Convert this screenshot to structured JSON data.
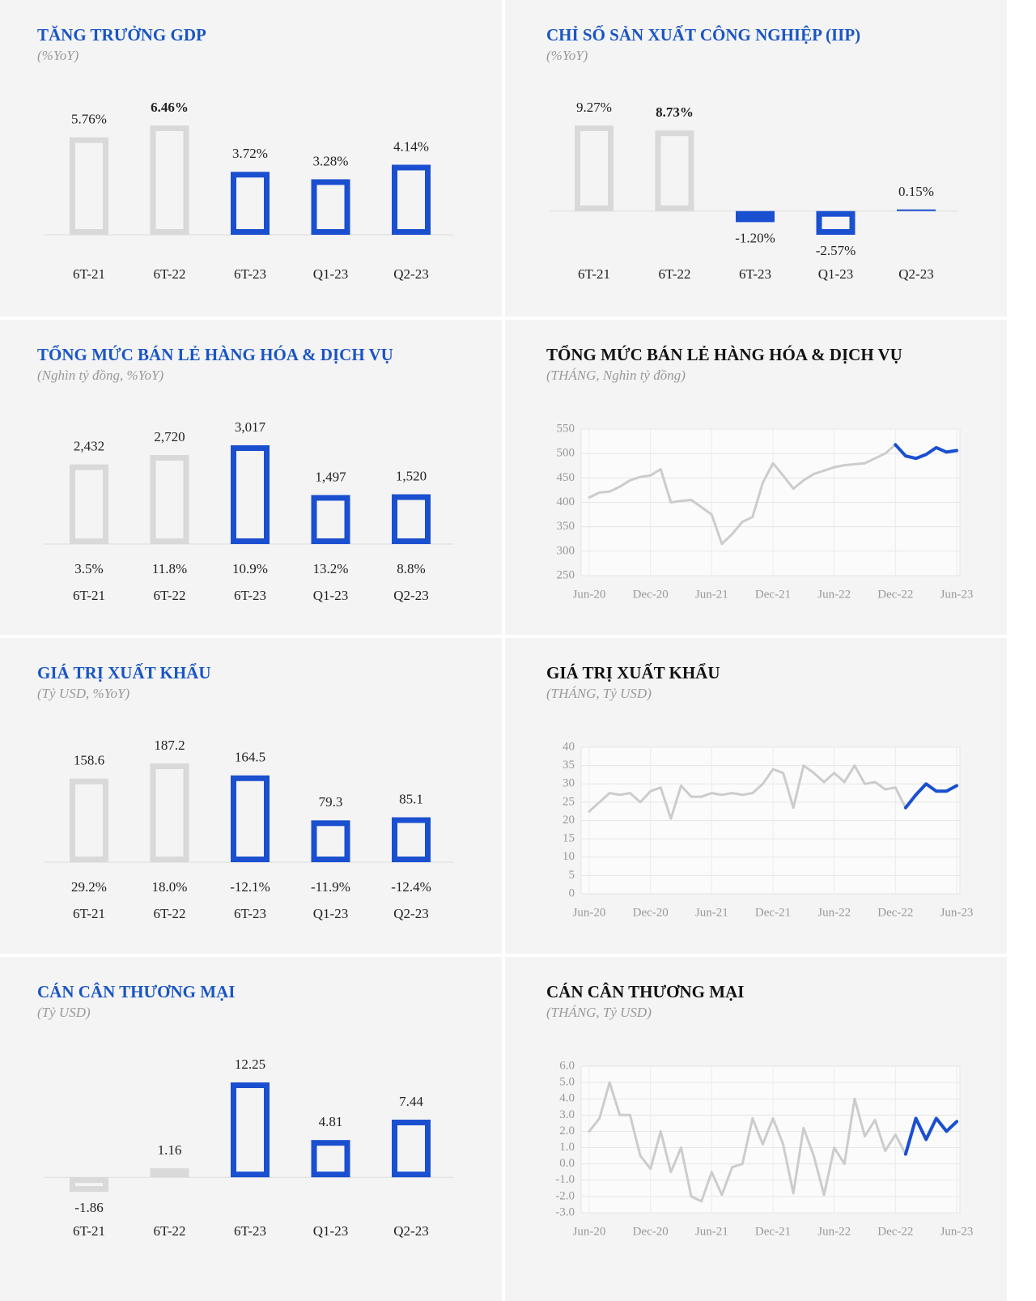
{
  "chart_data": [
    {
      "type": "bar",
      "title": "TĂNG TRƯỞNG GDP",
      "subtitle": "(%YoY)",
      "categories": [
        "6T-21",
        "6T-22",
        "6T-23",
        "Q1-23",
        "Q2-23"
      ],
      "values": [
        5.76,
        6.46,
        3.72,
        3.28,
        4.14
      ],
      "value_labels": [
        "5.76%",
        "6.46%",
        "3.72%",
        "3.28%",
        "4.14%"
      ],
      "colors": [
        "#d9d9d9",
        "#d9d9d9",
        "#1a4fd0",
        "#1a4fd0",
        "#1a4fd0"
      ],
      "value_label_colors": [
        "#222222",
        "#1a55c4",
        "#222222",
        "#222222",
        "#222222"
      ],
      "value_label_bold": [
        false,
        true,
        false,
        false,
        false
      ]
    },
    {
      "type": "bar",
      "title": "CHỈ SỐ SẢN XUẤT CÔNG NGHIỆP (IIP)",
      "subtitle": "(%YoY)",
      "categories": [
        "6T-21",
        "6T-22",
        "6T-23",
        "Q1-23",
        "Q2-23"
      ],
      "values": [
        9.27,
        8.73,
        -1.2,
        -2.57,
        0.15
      ],
      "value_labels": [
        "9.27%",
        "8.73%",
        "-1.20%",
        "-2.57%",
        "0.15%"
      ],
      "colors": [
        "#d9d9d9",
        "#d9d9d9",
        "#1a4fd0",
        "#1a4fd0",
        "#1a4fd0"
      ],
      "value_label_colors": [
        "#222222",
        "#1a55c4",
        "#222222",
        "#222222",
        "#222222"
      ],
      "value_label_bold": [
        false,
        true,
        false,
        false,
        false
      ]
    },
    {
      "type": "bar",
      "title": "TỔNG MỨC BÁN LẺ HÀNG HÓA & DỊCH VỤ",
      "subtitle": "(Nghìn tỷ đồng, %YoY)",
      "categories": [
        "6T-21",
        "6T-22",
        "6T-23",
        "Q1-23",
        "Q2-23"
      ],
      "values": [
        2432,
        2720,
        3017,
        1497,
        1520
      ],
      "value_labels": [
        "2,432",
        "2,720",
        "3,017",
        "1,497",
        "1,520"
      ],
      "colors": [
        "#d9d9d9",
        "#d9d9d9",
        "#1a4fd0",
        "#1a4fd0",
        "#1a4fd0"
      ],
      "growth_values": [
        3.5,
        11.8,
        10.9,
        13.2,
        8.8
      ],
      "growth_labels": [
        "3.5%",
        "11.8%",
        "10.9%",
        "13.2%",
        "8.8%"
      ],
      "growth_colors": [
        "#2e8b2e",
        "#2e8b2e",
        "#2e8b2e",
        "#2e8b2e",
        "#2e8b2e"
      ]
    },
    {
      "type": "line",
      "title": "TỔNG MỨC BÁN LẺ HÀNG HÓA & DỊCH VỤ",
      "subtitle": "(THÁNG, Nghìn tỷ đồng)",
      "categories": [
        "Jun-20",
        null,
        null,
        null,
        null,
        null,
        "Dec-20",
        null,
        null,
        null,
        null,
        null,
        "Jun-21",
        null,
        null,
        null,
        null,
        null,
        "Dec-21",
        null,
        null,
        null,
        null,
        null,
        "Jun-22",
        null,
        null,
        null,
        null,
        null,
        "Dec-22",
        null,
        null,
        null,
        null,
        null,
        "Jun-23"
      ],
      "series": [
        {
          "color": "#cccccc",
          "values": [
            410,
            420,
            422,
            432,
            445,
            452,
            455,
            468,
            400,
            403,
            405,
            390,
            375,
            315,
            335,
            360,
            370,
            440,
            480,
            455,
            428,
            445,
            458,
            465,
            472,
            476,
            478,
            480,
            490,
            500,
            518,
            null,
            null,
            null,
            null,
            null,
            null
          ]
        },
        {
          "color": "#1a4fd0",
          "values": [
            null,
            null,
            null,
            null,
            null,
            null,
            null,
            null,
            null,
            null,
            null,
            null,
            null,
            null,
            null,
            null,
            null,
            null,
            null,
            null,
            null,
            null,
            null,
            null,
            null,
            null,
            null,
            null,
            null,
            null,
            518,
            495,
            490,
            498,
            512,
            503,
            506
          ]
        }
      ],
      "ylim": [
        250,
        550
      ],
      "yticks": [
        250,
        300,
        350,
        400,
        450,
        500,
        550
      ],
      "grid": true
    },
    {
      "type": "bar",
      "title": "GIÁ TRỊ XUẤT KHẨU",
      "subtitle": "(Tỷ USD, %YoY)",
      "categories": [
        "6T-21",
        "6T-22",
        "6T-23",
        "Q1-23",
        "Q2-23"
      ],
      "values": [
        158.6,
        187.2,
        164.5,
        79.3,
        85.1
      ],
      "colors": [
        "#d9d9d9",
        "#d9d9d9",
        "#1a4fd0",
        "#1a4fd0",
        "#1a4fd0"
      ],
      "growth_values": [
        29.2,
        18.0,
        -12.1,
        -11.9,
        -12.4
      ],
      "growth_labels": [
        "29.2%",
        "18.0%",
        "-12.1%",
        "-11.9%",
        "-12.4%"
      ],
      "growth_colors": [
        "#2e8b2e",
        "#2e8b2e",
        "#c0392b",
        "#c0392b",
        "#c0392b"
      ]
    },
    {
      "type": "line",
      "title": "GIÁ TRỊ XUẤT KHẨU",
      "subtitle": "(THÁNG, Tỷ USD)",
      "categories": [
        "Jun-20",
        null,
        null,
        null,
        null,
        null,
        "Dec-20",
        null,
        null,
        null,
        null,
        null,
        "Jun-21",
        null,
        null,
        null,
        null,
        null,
        "Dec-21",
        null,
        null,
        null,
        null,
        null,
        "Jun-22",
        null,
        null,
        null,
        null,
        null,
        "Dec-22",
        null,
        null,
        null,
        null,
        null,
        "Jun-23"
      ],
      "series": [
        {
          "color": "#cccccc",
          "values": [
            22.5,
            25,
            27.5,
            27,
            27.5,
            25,
            28,
            29,
            20.5,
            29.5,
            26.5,
            26.5,
            27.5,
            27,
            27.5,
            27,
            27.5,
            30,
            34,
            33,
            23.5,
            35,
            33,
            30.5,
            33,
            30.5,
            35,
            30,
            30.5,
            28.5,
            29,
            23.5,
            null,
            null,
            null,
            null,
            null
          ]
        },
        {
          "color": "#1a4fd0",
          "values": [
            null,
            null,
            null,
            null,
            null,
            null,
            null,
            null,
            null,
            null,
            null,
            null,
            null,
            null,
            null,
            null,
            null,
            null,
            null,
            null,
            null,
            null,
            null,
            null,
            null,
            null,
            null,
            null,
            null,
            null,
            null,
            23.5,
            27,
            30,
            28,
            28,
            29.5
          ]
        }
      ],
      "ylim": [
        0,
        40
      ],
      "yticks": [
        0,
        5,
        10,
        15,
        20,
        25,
        30,
        35,
        40
      ],
      "grid": true
    },
    {
      "type": "bar",
      "title": "CÁN CÂN THƯƠNG MẠI",
      "subtitle": "(Tỷ USD)",
      "categories": [
        "6T-21",
        "6T-22",
        "6T-23",
        "Q1-23",
        "Q2-23"
      ],
      "values": [
        -1.86,
        1.16,
        12.25,
        4.81,
        7.44
      ],
      "colors": [
        "#d9d9d9",
        "#d9d9d9",
        "#1a4fd0",
        "#1a4fd0",
        "#1a4fd0"
      ]
    },
    {
      "type": "line",
      "title": "CÁN CÂN THƯƠNG MẠI",
      "subtitle": "(THÁNG, Tỷ USD)",
      "categories": [
        "Jun-20",
        null,
        null,
        null,
        null,
        null,
        "Dec-20",
        null,
        null,
        null,
        null,
        null,
        "Jun-21",
        null,
        null,
        null,
        null,
        null,
        "Dec-21",
        null,
        null,
        null,
        null,
        null,
        "Jun-22",
        null,
        null,
        null,
        null,
        null,
        "Dec-22",
        null,
        null,
        null,
        null,
        null,
        "Jun-23"
      ],
      "series": [
        {
          "color": "#cccccc",
          "values": [
            2.0,
            2.8,
            5.0,
            3.0,
            3.0,
            0.5,
            -0.3,
            2.0,
            -0.5,
            1.0,
            -2.0,
            -2.3,
            -0.5,
            -1.9,
            -0.2,
            0.0,
            2.8,
            1.2,
            2.8,
            1.2,
            -1.8,
            2.2,
            0.5,
            -1.9,
            1.0,
            0.0,
            4.0,
            1.7,
            2.7,
            0.8,
            1.8,
            0.6,
            null,
            null,
            null,
            null,
            null
          ]
        },
        {
          "color": "#1a4fd0",
          "values": [
            null,
            null,
            null,
            null,
            null,
            null,
            null,
            null,
            null,
            null,
            null,
            null,
            null,
            null,
            null,
            null,
            null,
            null,
            null,
            null,
            null,
            null,
            null,
            null,
            null,
            null,
            null,
            null,
            null,
            null,
            null,
            0.6,
            2.8,
            1.5,
            2.8,
            2.0,
            2.6
          ]
        }
      ],
      "ylim": [
        -3,
        6
      ],
      "yticks": [
        {
          "value": -3,
          "label": "-3.0"
        },
        {
          "value": -2,
          "label": "-2.0"
        },
        {
          "value": -1,
          "label": "-1.0"
        },
        {
          "value": 0,
          "label": "0.0"
        },
        {
          "value": 1,
          "label": "1.0"
        },
        {
          "value": 2,
          "label": "2.0"
        },
        {
          "value": 3,
          "label": "3.0"
        },
        {
          "value": 4,
          "label": "4.0"
        },
        {
          "value": 5,
          "label": "5.0"
        },
        {
          "value": 6,
          "label": "6.0"
        }
      ],
      "grid": true
    }
  ]
}
